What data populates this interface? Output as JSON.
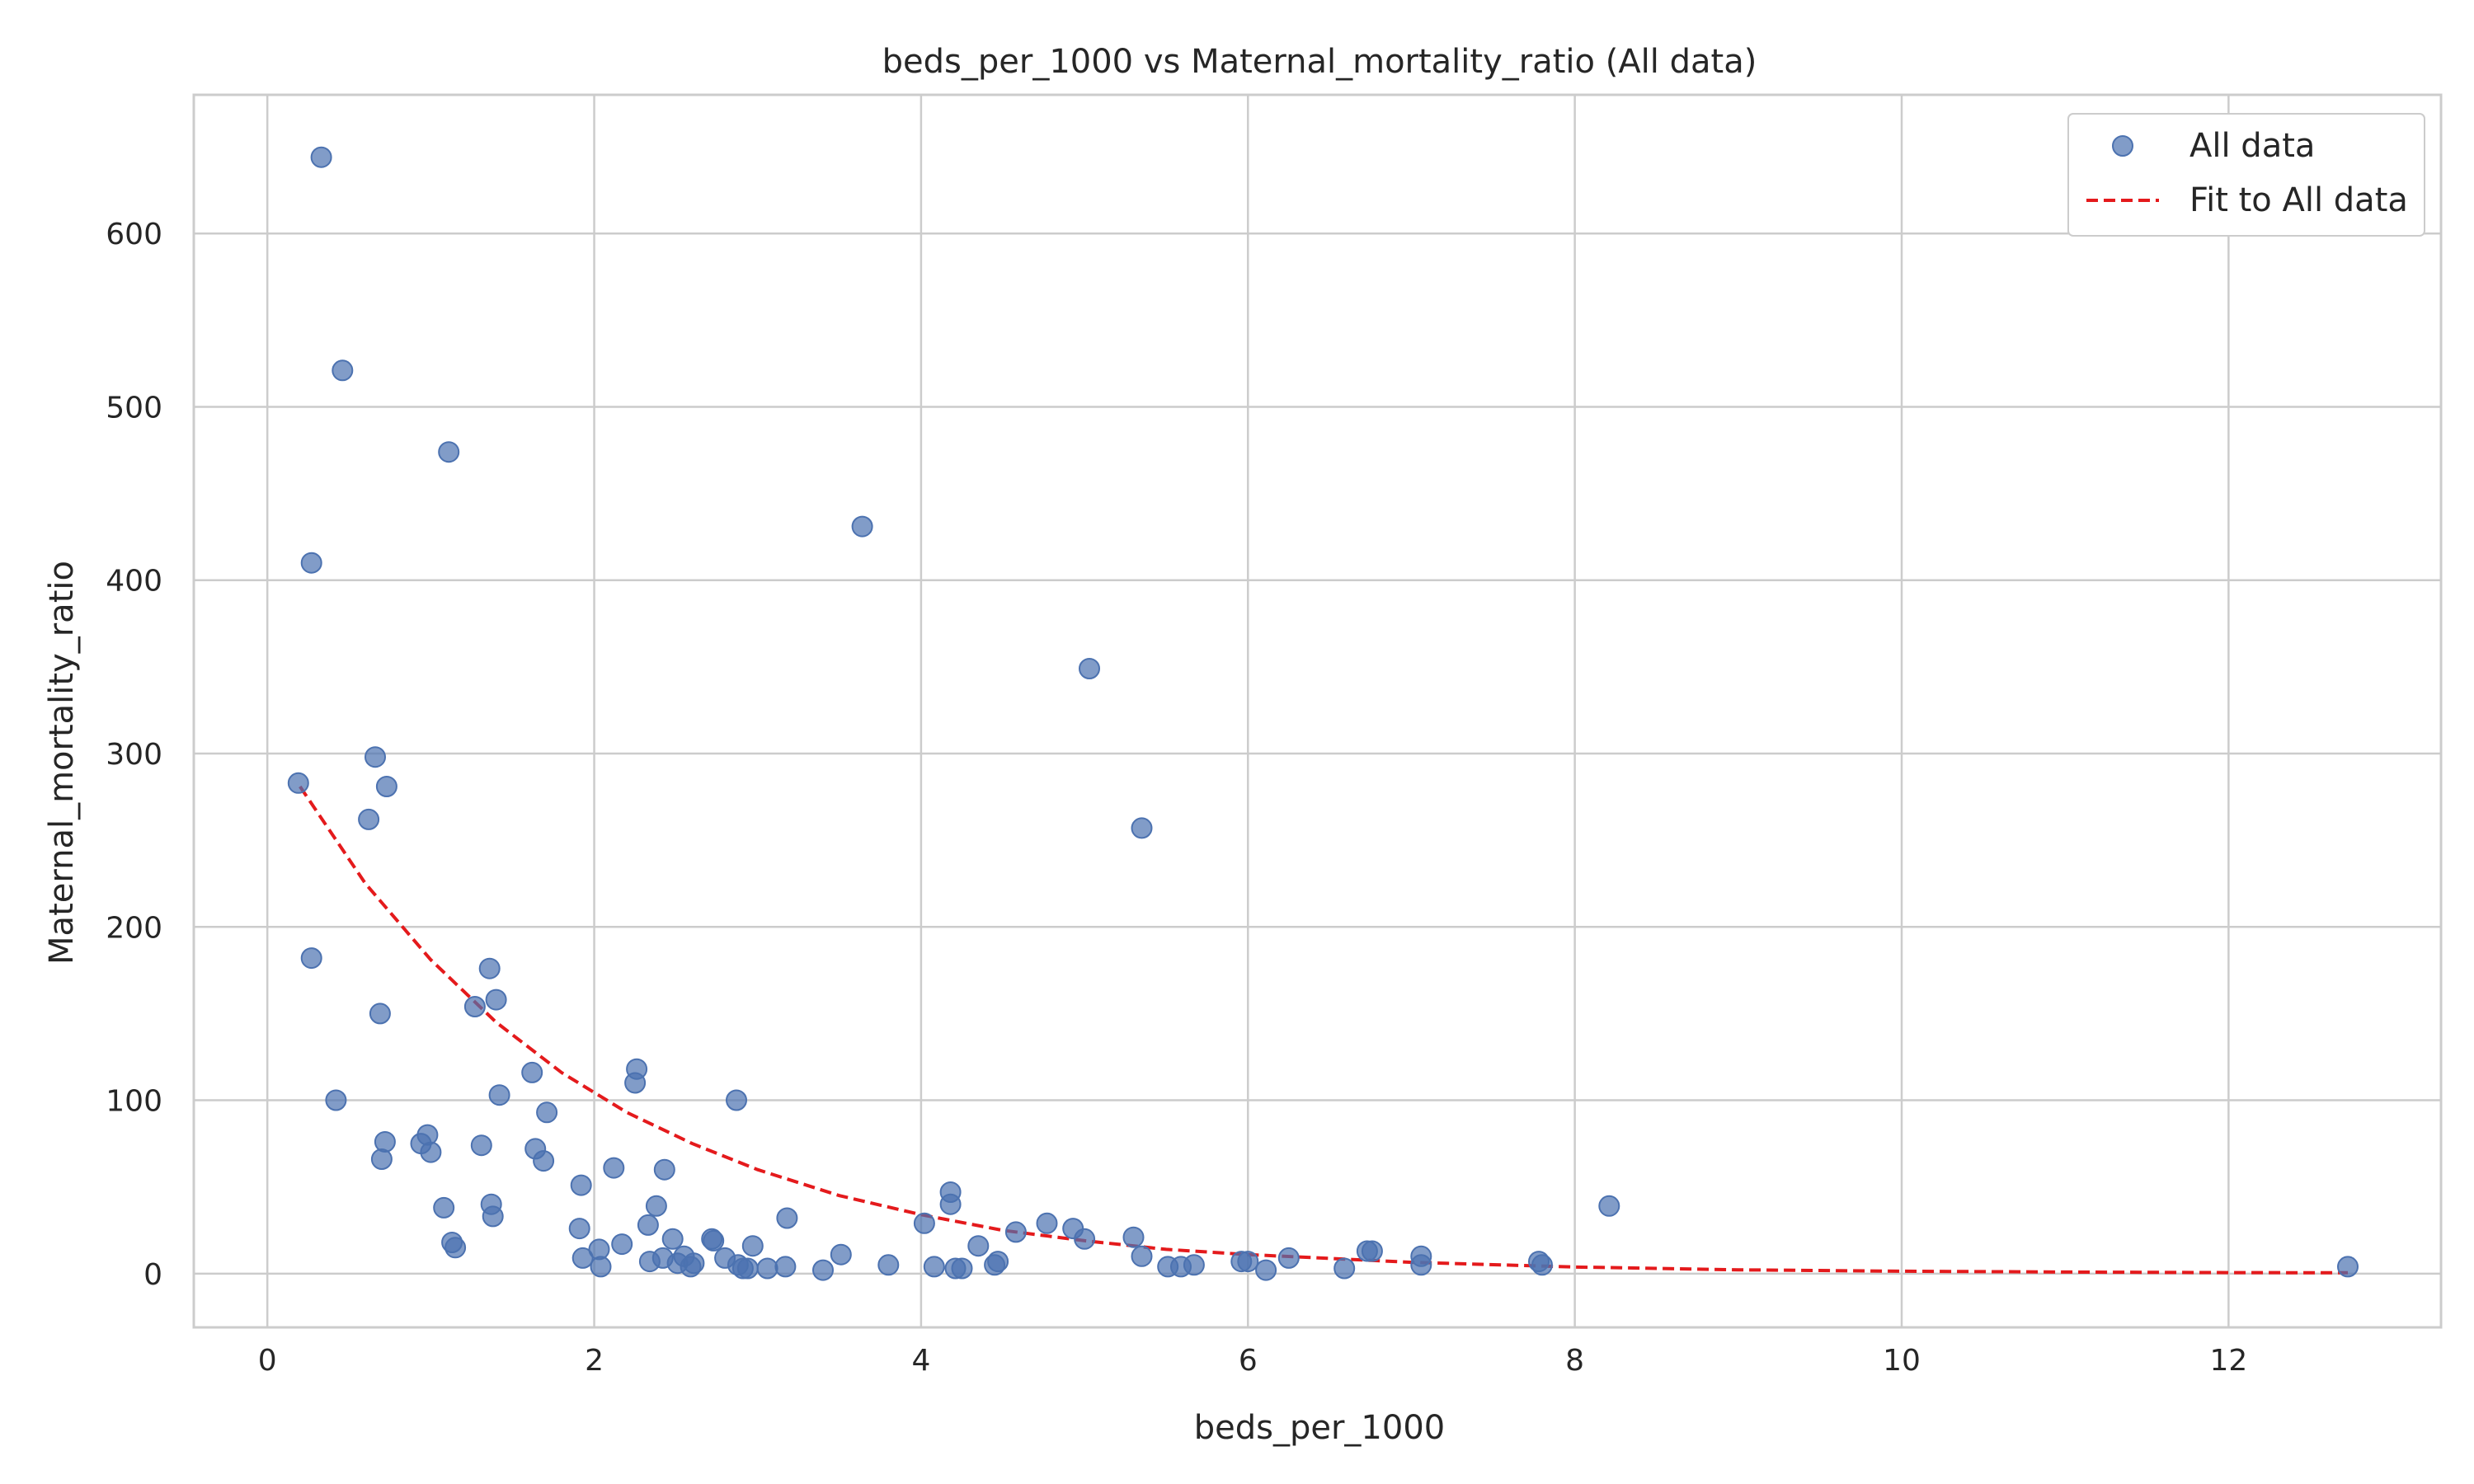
{
  "chart_data": {
    "type": "scatter",
    "title": "beds_per_1000 vs Maternal_mortality_ratio (All data)",
    "xlabel": "beds_per_1000",
    "ylabel": "Maternal_mortality_ratio",
    "xlim": [
      -0.45,
      13.3
    ],
    "ylim": [
      -31,
      680
    ],
    "xticks": [
      0,
      2,
      4,
      6,
      8,
      10,
      12
    ],
    "yticks": [
      0,
      100,
      200,
      300,
      400,
      500,
      600
    ],
    "grid": true,
    "legend_position": "top-right",
    "colors": {
      "points": "#4C72B0",
      "fit": "#E41A1C",
      "grid": "#CCCCCC",
      "spine": "#CCCCCC"
    },
    "series": [
      {
        "name": "All data",
        "kind": "scatter",
        "points": [
          [
            0.33,
            644
          ],
          [
            0.46,
            521
          ],
          [
            1.11,
            474
          ],
          [
            0.27,
            410
          ],
          [
            3.64,
            431
          ],
          [
            5.03,
            349
          ],
          [
            5.35,
            257
          ],
          [
            0.66,
            298
          ],
          [
            0.73,
            281
          ],
          [
            0.19,
            283
          ],
          [
            0.62,
            262
          ],
          [
            0.27,
            182
          ],
          [
            1.36,
            176
          ],
          [
            1.4,
            158
          ],
          [
            1.27,
            154
          ],
          [
            0.69,
            150
          ],
          [
            2.26,
            118
          ],
          [
            2.25,
            110
          ],
          [
            1.62,
            116
          ],
          [
            1.42,
            103
          ],
          [
            0.42,
            100
          ],
          [
            2.87,
            100
          ],
          [
            1.71,
            93
          ],
          [
            0.98,
            80
          ],
          [
            0.72,
            76
          ],
          [
            0.94,
            75
          ],
          [
            1.31,
            74
          ],
          [
            1.64,
            72
          ],
          [
            1.0,
            70
          ],
          [
            0.7,
            66
          ],
          [
            1.69,
            65
          ],
          [
            2.12,
            61
          ],
          [
            2.43,
            60
          ],
          [
            1.92,
            51
          ],
          [
            4.18,
            47
          ],
          [
            4.18,
            40
          ],
          [
            1.37,
            40
          ],
          [
            2.38,
            39
          ],
          [
            1.08,
            38
          ],
          [
            8.21,
            39
          ],
          [
            1.38,
            33
          ],
          [
            3.18,
            32
          ],
          [
            4.02,
            29
          ],
          [
            4.77,
            29
          ],
          [
            2.33,
            28
          ],
          [
            1.91,
            26
          ],
          [
            4.93,
            26
          ],
          [
            4.58,
            24
          ],
          [
            5.3,
            21
          ],
          [
            5.0,
            20
          ],
          [
            2.72,
            20
          ],
          [
            2.73,
            19
          ],
          [
            2.48,
            20
          ],
          [
            1.13,
            18
          ],
          [
            1.15,
            15
          ],
          [
            2.17,
            17
          ],
          [
            4.35,
            16
          ],
          [
            2.97,
            16
          ],
          [
            2.03,
            14
          ],
          [
            6.73,
            13
          ],
          [
            6.76,
            13
          ],
          [
            3.51,
            11
          ],
          [
            5.35,
            10
          ],
          [
            7.06,
            10
          ],
          [
            1.93,
            9
          ],
          [
            2.42,
            9
          ],
          [
            2.8,
            9
          ],
          [
            6.25,
            9
          ],
          [
            2.34,
            7
          ],
          [
            2.55,
            10
          ],
          [
            2.51,
            6
          ],
          [
            2.61,
            6
          ],
          [
            2.88,
            5
          ],
          [
            3.8,
            5
          ],
          [
            4.08,
            4
          ],
          [
            4.47,
            7
          ],
          [
            5.96,
            7
          ],
          [
            6.0,
            7
          ],
          [
            7.78,
            7
          ],
          [
            7.06,
            5
          ],
          [
            2.04,
            4
          ],
          [
            2.59,
            4
          ],
          [
            2.91,
            3
          ],
          [
            2.94,
            3
          ],
          [
            3.06,
            3
          ],
          [
            3.17,
            4
          ],
          [
            3.4,
            2
          ],
          [
            4.21,
            3
          ],
          [
            4.25,
            3
          ],
          [
            4.45,
            5
          ],
          [
            5.51,
            4
          ],
          [
            5.59,
            4
          ],
          [
            5.67,
            5
          ],
          [
            6.11,
            2
          ],
          [
            6.59,
            3
          ],
          [
            7.8,
            5
          ],
          [
            12.73,
            4
          ]
        ]
      },
      {
        "name": "Fit to All data",
        "kind": "line",
        "style": "dashed",
        "x": [
          0.2,
          0.6,
          1.0,
          1.4,
          1.8,
          2.2,
          2.6,
          3.0,
          3.5,
          4.0,
          4.5,
          5.0,
          5.5,
          6.0,
          7.0,
          8.0,
          9.0,
          10.0,
          11.0,
          12.0,
          12.73
        ],
        "y": [
          281,
          225,
          181,
          145,
          116,
          93,
          75,
          60,
          45,
          34,
          25,
          19,
          14,
          11,
          6.5,
          3.8,
          2.2,
          1.4,
          0.9,
          0.6,
          0.5
        ]
      }
    ]
  }
}
